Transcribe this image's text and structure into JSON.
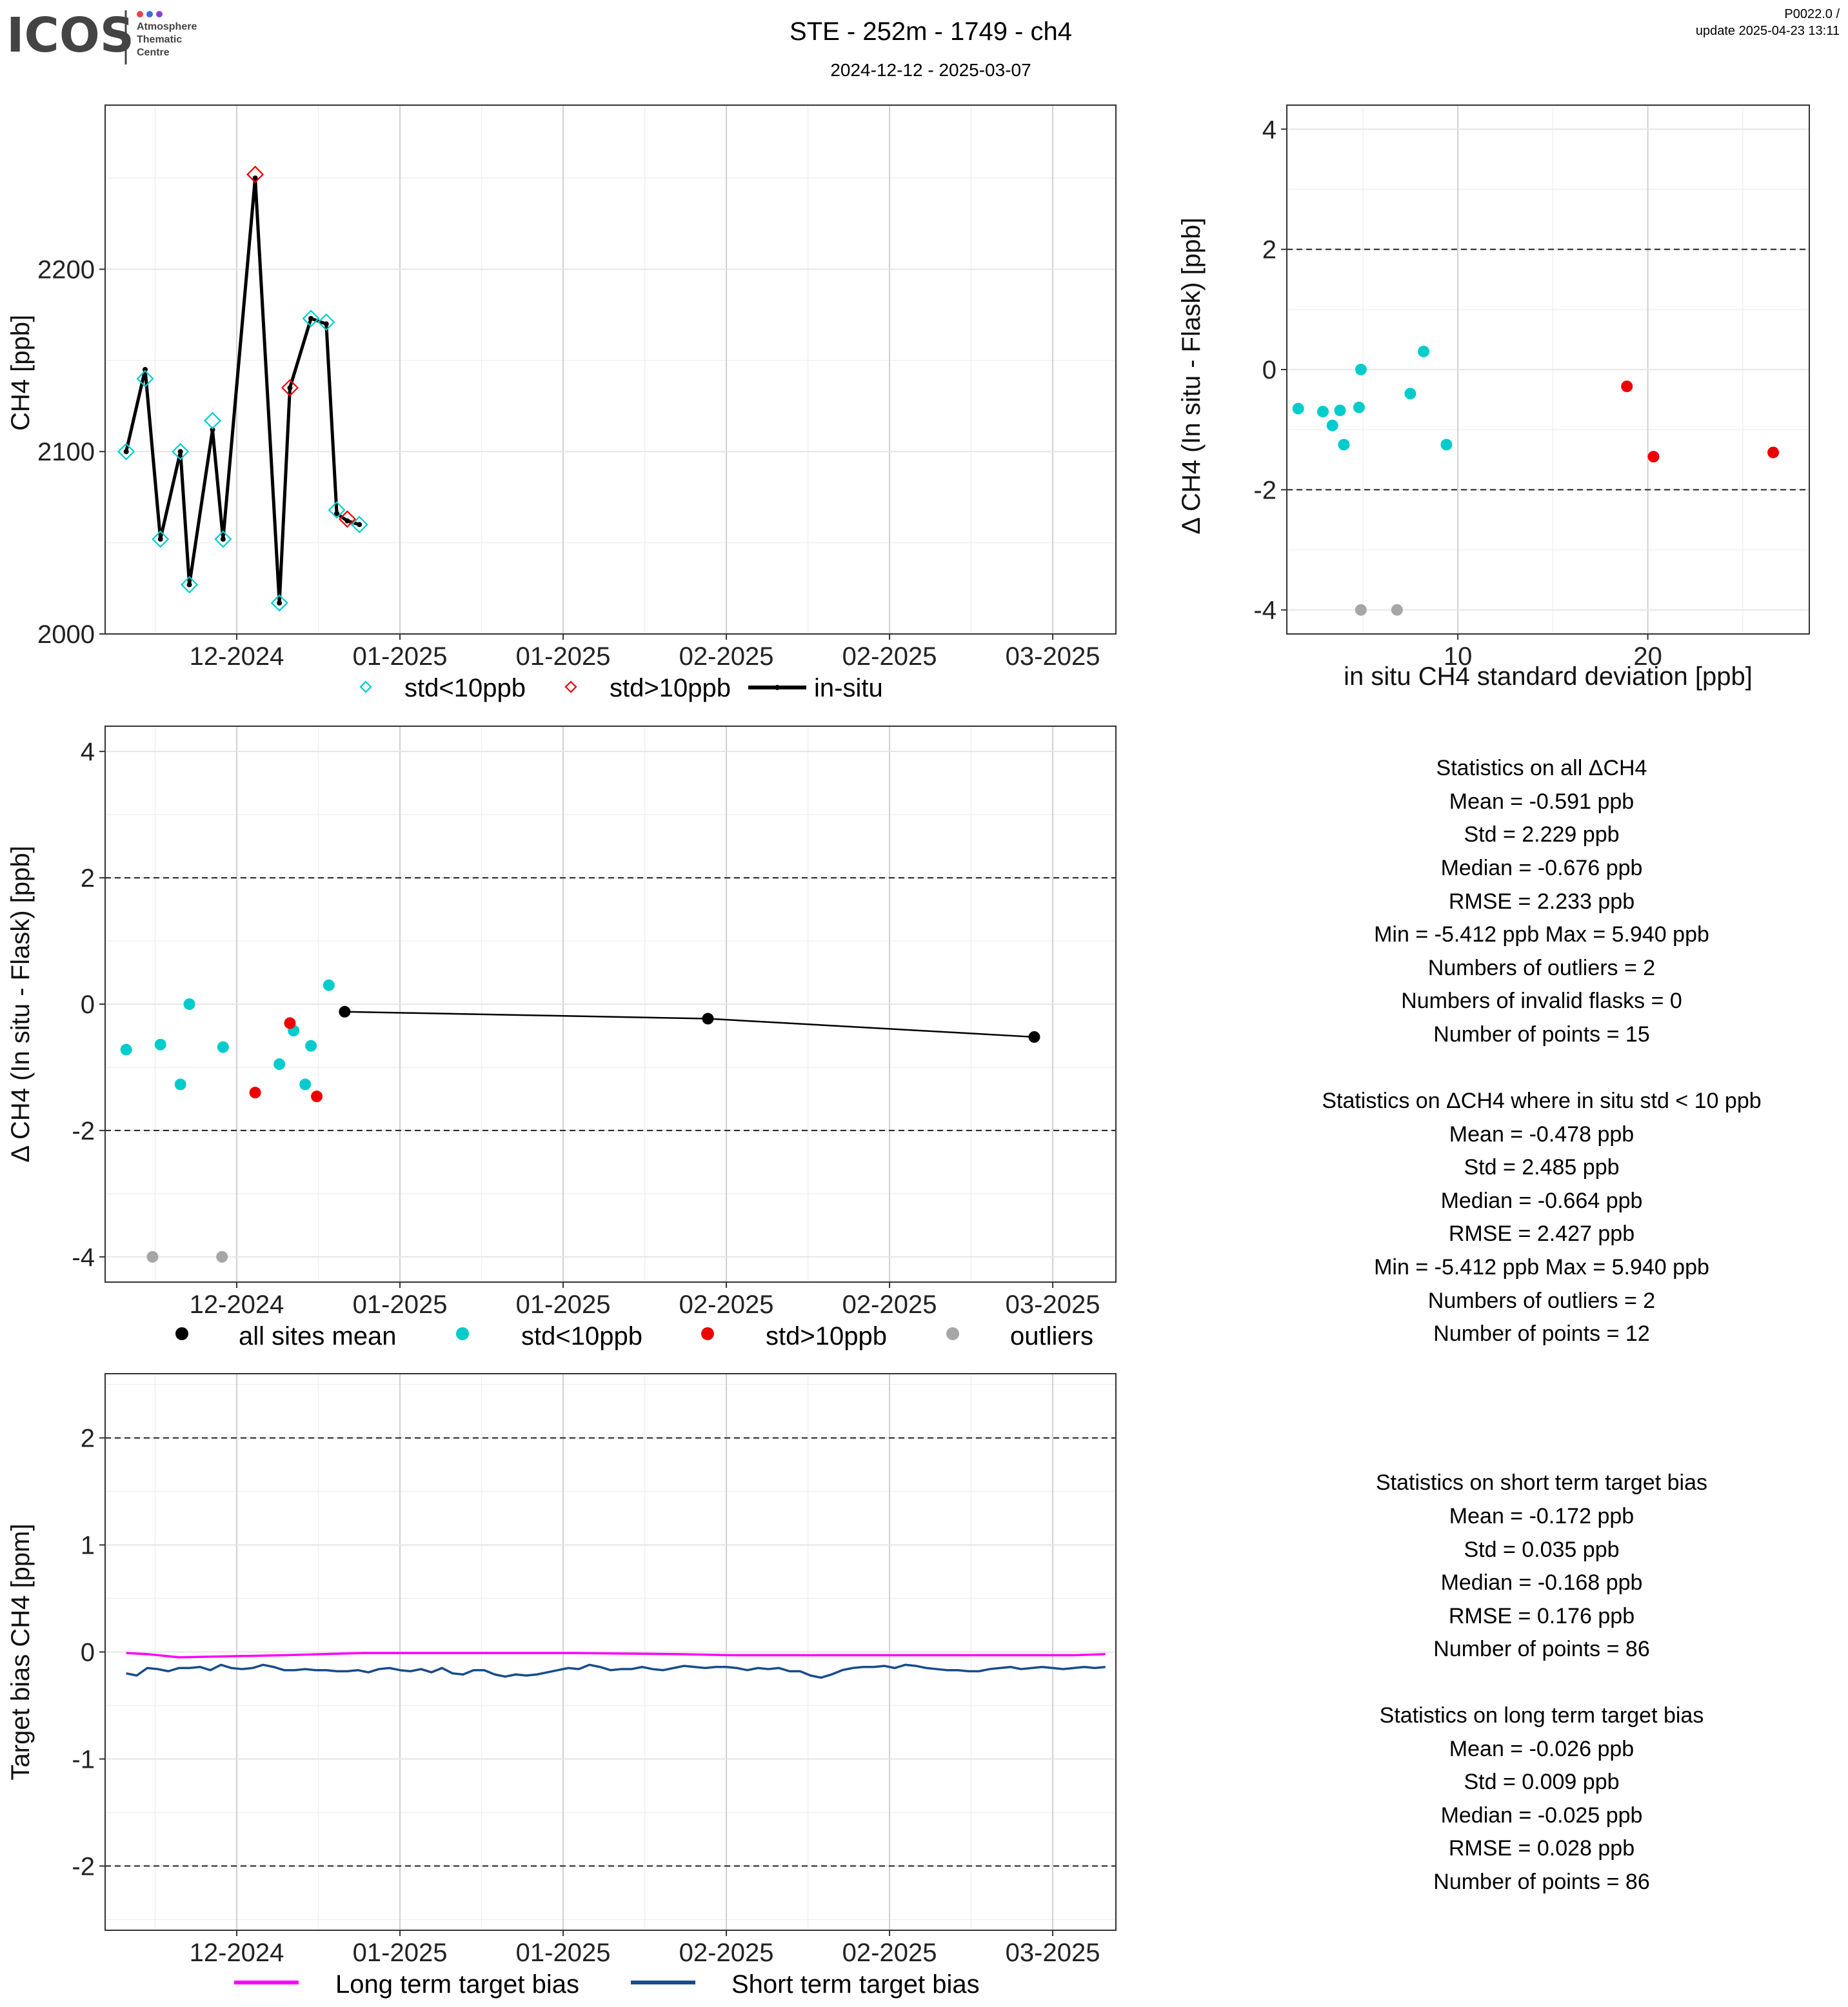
{
  "header": {
    "logo_text": "ICOS",
    "logo_sub": [
      "Atmosphere",
      "Thematic",
      "Centre"
    ],
    "logo_dot_colors": [
      "#e8434b",
      "#3b6fd6",
      "#8a3fd1"
    ],
    "title": "STE - 252m - 1749 - ch4",
    "subtitle": "2024-12-12 - 2025-03-07",
    "version": "P0022.0 /",
    "update": "update  2025-04-23 13:11"
  },
  "colors": {
    "std_lt10": "#00cccc",
    "std_gt10": "#ee0000",
    "outlier": "#a6a6a6",
    "insitu": "#000000",
    "long_term": "#ff00ff",
    "short_term": "#174c8a"
  },
  "chart_data": [
    {
      "type": "line",
      "name": "timeseries",
      "xlabel": "",
      "ylabel": "CH4 [ppb]",
      "x_ticks": [
        "12-2024",
        "01-2025",
        "01-2025",
        "02-2025",
        "02-2025",
        "03-2025"
      ],
      "x_tick_days": [
        16,
        47,
        78,
        109,
        140,
        171
      ],
      "x_range_days": [
        -9,
        183
      ],
      "ylim": [
        2000,
        2290
      ],
      "y_ticks": [
        2000,
        2100,
        2200
      ],
      "x_axis_note": "x values are days relative to 2024-11-15",
      "series": [
        {
          "name": "in-situ",
          "style": "line",
          "x": [
            -5,
            -1.4,
            1.5,
            5.3,
            7,
            11.4,
            13.4,
            19.5,
            24.1,
            26.1,
            30.1,
            33,
            35,
            37,
            39.3
          ],
          "y": [
            2100,
            2145,
            2052,
            2100,
            2027,
            2112,
            2052,
            2250,
            2017,
            2135,
            2173,
            2170,
            2066,
            2062,
            2060
          ]
        },
        {
          "name": "std<10ppb",
          "style": "diamond",
          "x": [
            -5,
            -1.4,
            1.5,
            5.3,
            7,
            11.4,
            13.4,
            24.1,
            30.1,
            33,
            35,
            39.3
          ],
          "y": [
            2100,
            2140,
            2052,
            2100,
            2027,
            2117,
            2052,
            2017,
            2173,
            2171,
            2068,
            2060
          ]
        },
        {
          "name": "std>10ppb",
          "style": "diamond",
          "x": [
            19.5,
            26.1,
            37
          ],
          "y": [
            2252,
            2135,
            2063
          ]
        }
      ],
      "legend": [
        "std<10ppb",
        "std>10ppb",
        "in-situ"
      ],
      "legend_position": "bottom"
    },
    {
      "type": "scatter",
      "name": "std_vs_diff",
      "xlabel": "in situ CH4 standard deviation [ppb]",
      "ylabel": "Δ CH4 (In situ - Flask) [ppb]",
      "xlim": [
        1,
        28.5
      ],
      "x_ticks": [
        10,
        20
      ],
      "ylim": [
        -4.4,
        4.4
      ],
      "y_ticks": [
        -4,
        -2,
        0,
        2,
        4
      ],
      "hlines": [
        -2,
        2
      ],
      "series": [
        {
          "name": "std<10ppb",
          "x": [
            1.6,
            2.9,
            3.4,
            3.8,
            4.0,
            4.8,
            4.9,
            7.5,
            8.2,
            9.4
          ],
          "y": [
            -0.65,
            -0.7,
            -0.93,
            -0.68,
            -1.25,
            -0.63,
            0.0,
            -0.4,
            0.3,
            -1.25
          ]
        },
        {
          "name": "std>10ppb",
          "x": [
            18.9,
            20.3,
            26.6
          ],
          "y": [
            -0.28,
            -1.45,
            -1.38
          ]
        },
        {
          "name": "outliers",
          "x": [
            4.9,
            6.8
          ],
          "y": [
            -4.0,
            -4.0
          ]
        }
      ]
    },
    {
      "type": "scatter",
      "name": "diff_timeseries",
      "xlabel": "",
      "ylabel": "Δ CH4 (In situ - Flask) [ppb]",
      "x_ticks": [
        "12-2024",
        "01-2025",
        "01-2025",
        "02-2025",
        "02-2025",
        "03-2025"
      ],
      "x_tick_days": [
        16,
        47,
        78,
        109,
        140,
        171
      ],
      "x_range_days": [
        -9,
        183
      ],
      "ylim": [
        -4.4,
        4.4
      ],
      "y_ticks": [
        -4,
        -2,
        0,
        2,
        4
      ],
      "hlines": [
        -2,
        2
      ],
      "series": [
        {
          "name": "all sites mean",
          "style": "line+point",
          "x": [
            36.5,
            105.5,
            167.5
          ],
          "y": [
            -0.12,
            -0.23,
            -0.52
          ]
        },
        {
          "name": "std<10ppb",
          "x": [
            -5,
            1.5,
            5.3,
            7,
            13.4,
            24.1,
            26.8,
            29,
            30.1,
            33.5
          ],
          "y": [
            -0.72,
            -0.64,
            -1.27,
            0.0,
            -0.68,
            -0.95,
            -0.42,
            -1.27,
            -0.66,
            0.3
          ]
        },
        {
          "name": "std>10ppb",
          "x": [
            19.5,
            26.1,
            31.2
          ],
          "y": [
            -1.4,
            -0.3,
            -1.46
          ]
        },
        {
          "name": "outliers",
          "x": [
            0,
            13.2
          ],
          "y": [
            -4.0,
            -4.0
          ]
        }
      ],
      "legend": [
        "all sites mean",
        "std<10ppb",
        "std>10ppb",
        "outliers"
      ],
      "legend_position": "bottom"
    },
    {
      "type": "line",
      "name": "target_bias",
      "xlabel": "",
      "ylabel": "Target bias CH4 [ppm]",
      "x_ticks": [
        "12-2024",
        "01-2025",
        "01-2025",
        "02-2025",
        "02-2025",
        "03-2025"
      ],
      "x_tick_days": [
        16,
        47,
        78,
        109,
        140,
        171
      ],
      "x_range_days": [
        -9,
        183
      ],
      "ylim": [
        -2.6,
        2.6
      ],
      "y_ticks": [
        -2,
        -1,
        0,
        1,
        2
      ],
      "hlines": [
        -2,
        2
      ],
      "series": [
        {
          "name": "Long term target bias",
          "x": [
            -5,
            -1,
            5,
            15,
            25,
            40,
            60,
            80,
            100,
            110,
            120,
            140,
            160,
            175,
            181
          ],
          "y": [
            -0.01,
            -0.02,
            -0.05,
            -0.04,
            -0.03,
            -0.01,
            -0.01,
            -0.01,
            -0.02,
            -0.03,
            -0.03,
            -0.03,
            -0.03,
            -0.03,
            -0.02
          ]
        },
        {
          "name": "Short term target bias",
          "x": [
            -5,
            -3,
            -1,
            1,
            3,
            5,
            7,
            9,
            11,
            13,
            15,
            17,
            19,
            21,
            23,
            25,
            27,
            29,
            31,
            33,
            35,
            37,
            39,
            41,
            43,
            45,
            47,
            49,
            51,
            53,
            55,
            57,
            59,
            61,
            63,
            65,
            67,
            69,
            71,
            73,
            75,
            77,
            79,
            81,
            83,
            85,
            87,
            89,
            91,
            93,
            95,
            97,
            99,
            101,
            103,
            105,
            107,
            109,
            111,
            113,
            115,
            117,
            119,
            121,
            123,
            125,
            127,
            129,
            131,
            133,
            135,
            137,
            139,
            141,
            143,
            145,
            147,
            149,
            151,
            153,
            155,
            157,
            159,
            161,
            163,
            165,
            167,
            169,
            171,
            173,
            175,
            177,
            179,
            181
          ],
          "y": [
            -0.2,
            -0.22,
            -0.15,
            -0.16,
            -0.18,
            -0.15,
            -0.15,
            -0.14,
            -0.17,
            -0.12,
            -0.15,
            -0.16,
            -0.15,
            -0.12,
            -0.14,
            -0.17,
            -0.17,
            -0.16,
            -0.17,
            -0.17,
            -0.18,
            -0.18,
            -0.17,
            -0.19,
            -0.16,
            -0.15,
            -0.17,
            -0.18,
            -0.16,
            -0.19,
            -0.15,
            -0.2,
            -0.21,
            -0.17,
            -0.17,
            -0.21,
            -0.23,
            -0.21,
            -0.22,
            -0.21,
            -0.19,
            -0.17,
            -0.15,
            -0.16,
            -0.12,
            -0.14,
            -0.17,
            -0.16,
            -0.16,
            -0.14,
            -0.16,
            -0.17,
            -0.15,
            -0.13,
            -0.14,
            -0.15,
            -0.14,
            -0.14,
            -0.15,
            -0.17,
            -0.15,
            -0.16,
            -0.15,
            -0.18,
            -0.18,
            -0.22,
            -0.24,
            -0.21,
            -0.17,
            -0.15,
            -0.14,
            -0.14,
            -0.13,
            -0.15,
            -0.12,
            -0.13,
            -0.15,
            -0.16,
            -0.17,
            -0.17,
            -0.18,
            -0.18,
            -0.16,
            -0.15,
            -0.14,
            -0.16,
            -0.15,
            -0.14,
            -0.15,
            -0.16,
            -0.15,
            -0.14,
            -0.15,
            -0.14
          ]
        }
      ],
      "legend": [
        "Long term target bias",
        "Short term target bias"
      ],
      "legend_position": "bottom"
    }
  ],
  "stats_all": [
    "Statistics on all ΔCH4",
    "Mean =  -0.591 ppb",
    "Std =  2.229 ppb",
    "Median =  -0.676 ppb",
    "RMSE =  2.233 ppb",
    "Min =  -5.412 ppb Max =  5.940 ppb",
    "Numbers of outliers =  2",
    "Numbers of invalid flasks =  0",
    "Number of points =  15"
  ],
  "stats_std10": [
    "Statistics on ΔCH4 where in situ std < 10 ppb",
    "Mean =  -0.478 ppb",
    "Std =  2.485 ppb",
    "Median =  -0.664 ppb",
    "RMSE =  2.427 ppb",
    "Min =  -5.412 ppb Max =  5.940 ppb",
    "Numbers of outliers =  2",
    "Number of points =  12"
  ],
  "stats_short": [
    "Statistics on short term target bias",
    "Mean =  -0.172 ppb",
    "Std =  0.035 ppb",
    "Median =  -0.168 ppb",
    "RMSE =  0.176 ppb",
    "Number of points =  86"
  ],
  "stats_long": [
    "Statistics on long term target bias",
    "Mean =  -0.026 ppb",
    "Std =  0.009 ppb",
    "Median =  -0.025 ppb",
    "RMSE =  0.028 ppb",
    "Number of points =  86"
  ]
}
